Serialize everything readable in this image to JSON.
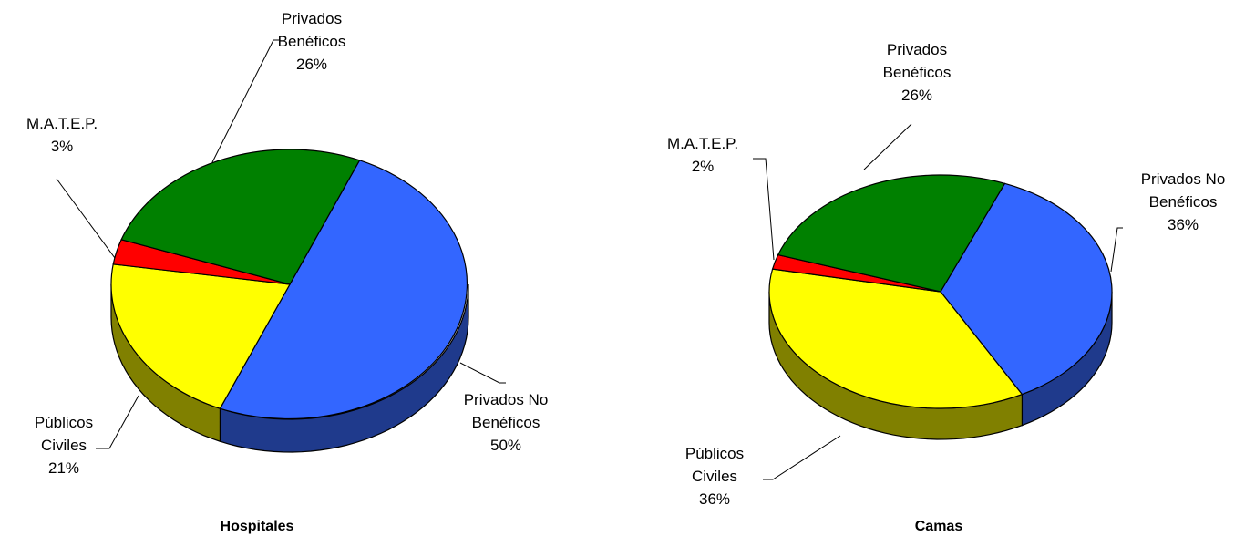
{
  "chart_data": [
    {
      "type": "pie",
      "title": "Hospitales",
      "slices": [
        {
          "name": [
            "Privados No",
            "Benéficos"
          ],
          "pct_label": "50%",
          "value": 50,
          "color": "#3366ff",
          "side_color": "#1f3a8c"
        },
        {
          "name": [
            "Públicos",
            "Civiles"
          ],
          "pct_label": "21%",
          "value": 21,
          "color": "#ffff00",
          "side_color": "#808000"
        },
        {
          "name": [
            "M.A.T.E.P."
          ],
          "pct_label": "3%",
          "value": 3,
          "color": "#ff0000",
          "side_color": "#800000"
        },
        {
          "name": [
            "Privados",
            "Benéficos"
          ],
          "pct_label": "26%",
          "value": 26,
          "color": "#008000",
          "side_color": "#004000"
        }
      ]
    },
    {
      "type": "pie",
      "title": "Camas",
      "slices": [
        {
          "name": [
            "Privados No",
            "Benéficos"
          ],
          "pct_label": "36%",
          "value": 36,
          "color": "#3366ff",
          "side_color": "#1f3a8c"
        },
        {
          "name": [
            "Públicos",
            "Civiles"
          ],
          "pct_label": "36%",
          "value": 36,
          "color": "#ffff00",
          "side_color": "#808000"
        },
        {
          "name": [
            "M.A.T.E.P."
          ],
          "pct_label": "2%",
          "value": 2,
          "color": "#ff0000",
          "side_color": "#800000"
        },
        {
          "name": [
            "Privados",
            "Benéficos"
          ],
          "pct_label": "26%",
          "value": 26,
          "color": "#008000",
          "side_color": "#004000"
        }
      ]
    }
  ]
}
